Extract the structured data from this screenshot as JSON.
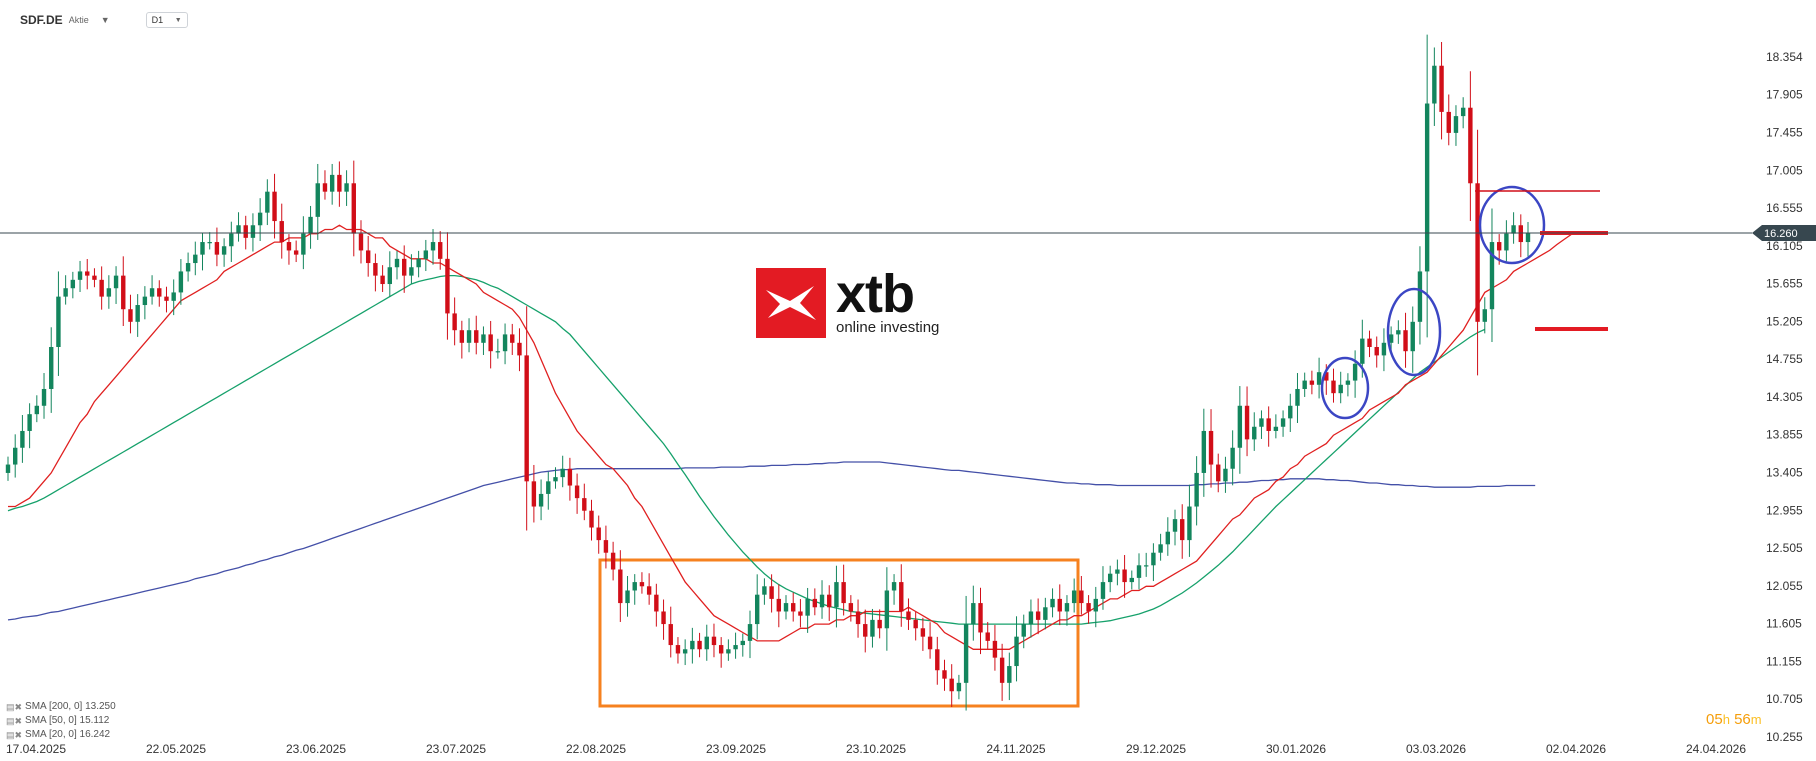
{
  "toolbar": {
    "symbol": "SDF.DE",
    "security_type": "Aktie",
    "timeframe": "D1"
  },
  "logo": {
    "name": "xtb",
    "tagline": "online investing"
  },
  "indicators": [
    {
      "label": "SMA [200, 0] 13.250",
      "color": "#4450a8"
    },
    {
      "label": "SMA [50, 0] 15.112",
      "color": "#16a16b"
    },
    {
      "label": "SMA [20, 0] 16.242",
      "color": "#e02020"
    }
  ],
  "countdown": {
    "hours": "05",
    "h": "h",
    "minutes": "56",
    "m": "m"
  },
  "colors": {
    "bull": "#13855d",
    "bear": "#d10e18",
    "sma200": "#4450a8",
    "sma50": "#16a16b",
    "sma20": "#e02020",
    "box": "#f6811f",
    "circle": "#3b46c4",
    "current_tag": "#37474f"
  },
  "chart_data": {
    "type": "candlestick",
    "symbol": "SDF.DE",
    "current_price": "16.260",
    "y_ticks": [
      "18.354",
      "17.905",
      "17.455",
      "17.005",
      "16.555",
      "16.105",
      "15.655",
      "15.205",
      "14.755",
      "14.305",
      "13.855",
      "13.405",
      "12.955",
      "12.505",
      "12.055",
      "11.605",
      "11.155",
      "10.705",
      "10.255"
    ],
    "ylim": [
      10.255,
      18.354
    ],
    "x_ticks": [
      "17.04.2025",
      "22.05.2025",
      "23.06.2025",
      "23.07.2025",
      "22.08.2025",
      "23.09.2025",
      "23.10.2025",
      "24.11.2025",
      "29.12.2025",
      "30.01.2026",
      "03.03.2026",
      "02.04.2026",
      "24.04.2026"
    ],
    "close": [
      13.5,
      13.7,
      13.9,
      14.1,
      14.2,
      14.4,
      14.9,
      15.5,
      15.6,
      15.7,
      15.8,
      15.75,
      15.7,
      15.5,
      15.6,
      15.75,
      15.35,
      15.2,
      15.4,
      15.5,
      15.6,
      15.5,
      15.45,
      15.55,
      15.8,
      15.9,
      16.0,
      16.15,
      16.15,
      16.0,
      16.1,
      16.25,
      16.35,
      16.2,
      16.35,
      16.5,
      16.75,
      16.4,
      16.15,
      16.05,
      16.0,
      16.25,
      16.45,
      16.85,
      16.75,
      16.95,
      16.75,
      16.85,
      16.25,
      16.05,
      15.9,
      15.75,
      15.65,
      15.85,
      15.95,
      15.75,
      15.85,
      15.95,
      16.05,
      16.15,
      15.95,
      15.3,
      15.1,
      14.95,
      15.1,
      14.95,
      15.05,
      14.85,
      14.85,
      15.05,
      14.95,
      14.8,
      13.3,
      13.0,
      13.15,
      13.3,
      13.35,
      13.45,
      13.25,
      13.1,
      12.95,
      12.75,
      12.6,
      12.45,
      12.25,
      11.85,
      12.0,
      12.1,
      12.05,
      11.95,
      11.75,
      11.6,
      11.35,
      11.25,
      11.3,
      11.4,
      11.3,
      11.45,
      11.35,
      11.25,
      11.3,
      11.35,
      11.4,
      11.6,
      11.95,
      12.05,
      11.9,
      11.75,
      11.85,
      11.75,
      11.7,
      11.9,
      11.8,
      11.95,
      11.8,
      12.1,
      11.85,
      11.75,
      11.6,
      11.45,
      11.65,
      11.55,
      12.0,
      12.1,
      11.75,
      11.65,
      11.55,
      11.45,
      11.3,
      11.05,
      10.95,
      10.8,
      10.9,
      11.6,
      11.85,
      11.5,
      11.4,
      11.2,
      10.9,
      11.1,
      11.45,
      11.6,
      11.75,
      11.65,
      11.8,
      11.9,
      11.75,
      11.85,
      12.0,
      11.85,
      11.75,
      11.9,
      12.1,
      12.2,
      12.25,
      12.1,
      12.15,
      12.3,
      12.3,
      12.45,
      12.55,
      12.7,
      12.85,
      12.6,
      13.0,
      13.4,
      13.9,
      13.5,
      13.3,
      13.45,
      13.7,
      14.2,
      13.8,
      13.95,
      14.05,
      13.9,
      13.95,
      14.05,
      14.2,
      14.4,
      14.5,
      14.45,
      14.6,
      14.5,
      14.35,
      14.45,
      14.5,
      14.7,
      15.0,
      14.9,
      14.8,
      14.95,
      15.05,
      15.1,
      14.85,
      15.2,
      15.8,
      17.8,
      18.25,
      17.7,
      17.45,
      17.65,
      17.75,
      16.85,
      15.2,
      15.35,
      16.15,
      16.05,
      16.25,
      16.35,
      16.15,
      16.26
    ],
    "sma20": [
      13.0,
      13.0,
      13.05,
      13.1,
      13.2,
      13.3,
      13.4,
      13.55,
      13.7,
      13.85,
      14.0,
      14.1,
      14.25,
      14.35,
      14.45,
      14.55,
      14.65,
      14.75,
      14.85,
      14.95,
      15.05,
      15.15,
      15.25,
      15.35,
      15.45,
      15.5,
      15.55,
      15.6,
      15.65,
      15.7,
      15.8,
      15.85,
      15.9,
      15.95,
      16.0,
      16.05,
      16.1,
      16.15,
      16.15,
      16.2,
      16.2,
      16.2,
      16.25,
      16.25,
      16.3,
      16.3,
      16.35,
      16.3,
      16.3,
      16.3,
      16.25,
      16.2,
      16.2,
      16.1,
      16.05,
      16.0,
      15.95,
      15.95,
      15.95,
      15.9,
      15.9,
      15.85,
      15.8,
      15.75,
      15.7,
      15.65,
      15.55,
      15.5,
      15.45,
      15.4,
      15.35,
      15.25,
      15.1,
      14.95,
      14.75,
      14.55,
      14.35,
      14.2,
      14.05,
      13.9,
      13.8,
      13.7,
      13.6,
      13.5,
      13.45,
      13.35,
      13.25,
      13.1,
      13.0,
      12.85,
      12.7,
      12.55,
      12.4,
      12.25,
      12.1,
      12.0,
      11.9,
      11.8,
      11.7,
      11.65,
      11.6,
      11.55,
      11.5,
      11.45,
      11.4,
      11.4,
      11.4,
      11.4,
      11.45,
      11.5,
      11.55,
      11.55,
      11.6,
      11.6,
      11.6,
      11.65,
      11.65,
      11.7,
      11.7,
      11.75,
      11.75,
      11.75,
      11.75,
      11.75,
      11.75,
      11.8,
      11.75,
      11.7,
      11.65,
      11.6,
      11.5,
      11.45,
      11.4,
      11.35,
      11.3,
      11.3,
      11.3,
      11.3,
      11.3,
      11.3,
      11.35,
      11.4,
      11.45,
      11.5,
      11.55,
      11.6,
      11.65,
      11.65,
      11.7,
      11.7,
      11.75,
      11.8,
      11.85,
      11.9,
      11.9,
      11.95,
      12.0,
      12.0,
      12.05,
      12.05,
      12.1,
      12.15,
      12.2,
      12.25,
      12.3,
      12.35,
      12.45,
      12.55,
      12.65,
      12.75,
      12.85,
      12.9,
      13.0,
      13.1,
      13.15,
      13.2,
      13.3,
      13.35,
      13.45,
      13.5,
      13.6,
      13.65,
      13.7,
      13.75,
      13.85,
      13.9,
      13.95,
      14.0,
      14.05,
      14.15,
      14.2,
      14.25,
      14.3,
      14.35,
      14.45,
      14.5,
      14.55,
      14.6,
      14.7,
      14.8,
      14.9,
      15.0,
      15.1,
      15.25,
      15.4,
      15.55,
      15.6,
      15.65,
      15.7,
      15.8,
      15.85,
      15.9,
      15.95,
      16.0,
      16.05,
      16.12,
      16.18,
      16.24
    ],
    "sma50": [
      12.95,
      12.98,
      13.0,
      13.03,
      13.06,
      13.1,
      13.15,
      13.2,
      13.25,
      13.3,
      13.35,
      13.4,
      13.45,
      13.5,
      13.55,
      13.6,
      13.65,
      13.7,
      13.75,
      13.8,
      13.85,
      13.9,
      13.95,
      14.0,
      14.05,
      14.1,
      14.15,
      14.2,
      14.25,
      14.3,
      14.35,
      14.4,
      14.45,
      14.5,
      14.55,
      14.6,
      14.65,
      14.7,
      14.75,
      14.8,
      14.85,
      14.9,
      14.95,
      15.0,
      15.05,
      15.1,
      15.15,
      15.2,
      15.25,
      15.3,
      15.35,
      15.4,
      15.45,
      15.5,
      15.55,
      15.6,
      15.65,
      15.68,
      15.7,
      15.72,
      15.74,
      15.75,
      15.75,
      15.74,
      15.72,
      15.7,
      15.67,
      15.63,
      15.6,
      15.55,
      15.5,
      15.45,
      15.4,
      15.35,
      15.3,
      15.25,
      15.2,
      15.12,
      15.05,
      14.95,
      14.85,
      14.75,
      14.65,
      14.55,
      14.45,
      14.35,
      14.25,
      14.15,
      14.05,
      13.95,
      13.85,
      13.75,
      13.63,
      13.5,
      13.38,
      13.25,
      13.12,
      13.0,
      12.88,
      12.77,
      12.66,
      12.56,
      12.46,
      12.37,
      12.28,
      12.2,
      12.13,
      12.07,
      12.02,
      11.98,
      11.94,
      11.9,
      11.87,
      11.84,
      11.81,
      11.79,
      11.77,
      11.75,
      11.74,
      11.73,
      11.72,
      11.71,
      11.7,
      11.69,
      11.68,
      11.67,
      11.66,
      11.65,
      11.64,
      11.63,
      11.62,
      11.61,
      11.6,
      11.6,
      11.6,
      11.6,
      11.6,
      11.6,
      11.6,
      11.6,
      11.6,
      11.6,
      11.6,
      11.6,
      11.6,
      11.6,
      11.6,
      11.6,
      11.6,
      11.6,
      11.61,
      11.62,
      11.63,
      11.64,
      11.66,
      11.68,
      11.7,
      11.72,
      11.75,
      11.78,
      11.82,
      11.87,
      11.92,
      11.97,
      12.03,
      12.09,
      12.16,
      12.23,
      12.3,
      12.38,
      12.46,
      12.55,
      12.64,
      12.73,
      12.82,
      12.91,
      13.0,
      13.08,
      13.16,
      13.24,
      13.32,
      13.4,
      13.48,
      13.56,
      13.64,
      13.72,
      13.8,
      13.88,
      13.96,
      14.04,
      14.12,
      14.2,
      14.28,
      14.36,
      14.44,
      14.52,
      14.6,
      14.66,
      14.72,
      14.78,
      14.84,
      14.9,
      14.96,
      15.02,
      15.07,
      15.11
    ],
    "sma200": [
      11.65,
      11.66,
      11.68,
      11.69,
      11.7,
      11.72,
      11.74,
      11.75,
      11.77,
      11.79,
      11.81,
      11.83,
      11.85,
      11.87,
      11.89,
      11.91,
      11.93,
      11.95,
      11.97,
      11.99,
      12.01,
      12.03,
      12.05,
      12.07,
      12.09,
      12.11,
      12.14,
      12.16,
      12.18,
      12.2,
      12.23,
      12.25,
      12.27,
      12.3,
      12.32,
      12.35,
      12.37,
      12.4,
      12.42,
      12.45,
      12.48,
      12.5,
      12.53,
      12.56,
      12.59,
      12.62,
      12.65,
      12.68,
      12.71,
      12.74,
      12.77,
      12.8,
      12.83,
      12.86,
      12.89,
      12.92,
      12.95,
      12.98,
      13.01,
      13.04,
      13.07,
      13.1,
      13.13,
      13.16,
      13.19,
      13.22,
      13.25,
      13.27,
      13.29,
      13.31,
      13.33,
      13.35,
      13.37,
      13.39,
      13.41,
      13.42,
      13.43,
      13.44,
      13.44,
      13.45,
      13.45,
      13.45,
      13.45,
      13.45,
      13.45,
      13.45,
      13.45,
      13.45,
      13.45,
      13.45,
      13.45,
      13.45,
      13.45,
      13.45,
      13.46,
      13.46,
      13.46,
      13.46,
      13.46,
      13.47,
      13.47,
      13.47,
      13.47,
      13.48,
      13.48,
      13.48,
      13.49,
      13.49,
      13.49,
      13.5,
      13.5,
      13.5,
      13.51,
      13.51,
      13.52,
      13.52,
      13.53,
      13.53,
      13.53,
      13.53,
      13.53,
      13.53,
      13.52,
      13.51,
      13.5,
      13.49,
      13.48,
      13.47,
      13.46,
      13.45,
      13.44,
      13.43,
      13.43,
      13.42,
      13.41,
      13.4,
      13.39,
      13.38,
      13.37,
      13.36,
      13.35,
      13.34,
      13.33,
      13.32,
      13.31,
      13.3,
      13.29,
      13.28,
      13.28,
      13.27,
      13.27,
      13.26,
      13.26,
      13.26,
      13.25,
      13.25,
      13.25,
      13.25,
      13.25,
      13.25,
      13.25,
      13.25,
      13.25,
      13.25,
      13.25,
      13.26,
      13.26,
      13.27,
      13.27,
      13.28,
      13.28,
      13.29,
      13.29,
      13.3,
      13.31,
      13.31,
      13.32,
      13.32,
      13.33,
      13.33,
      13.33,
      13.33,
      13.33,
      13.32,
      13.32,
      13.31,
      13.31,
      13.3,
      13.29,
      13.28,
      13.28,
      13.27,
      13.26,
      13.26,
      13.25,
      13.25,
      13.24,
      13.24,
      13.23,
      13.23,
      13.23,
      13.23,
      13.23,
      13.23,
      13.24,
      13.24,
      13.24,
      13.24,
      13.25,
      13.25,
      13.25,
      13.25,
      13.25
    ]
  }
}
